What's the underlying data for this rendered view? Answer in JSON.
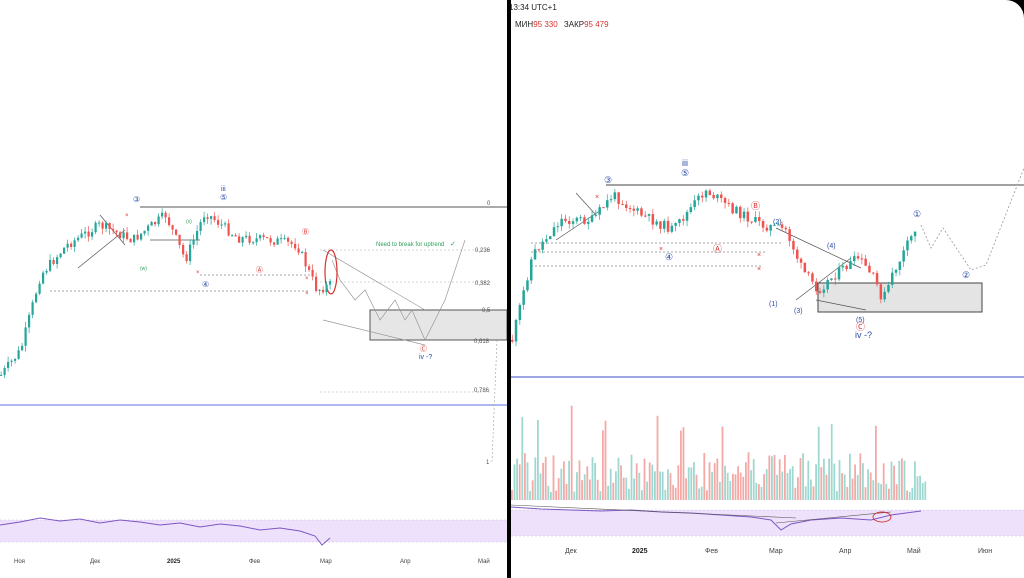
{
  "left": {
    "x_ticks": [
      "Ноя",
      "Дек",
      "2025",
      "Фев",
      "Мар",
      "Апр",
      "Май"
    ],
    "fib_levels": [
      "0",
      "0,236",
      "0,382",
      "0,5",
      "0,618",
      "0,786",
      "1"
    ],
    "note": "Need to break for uptrend",
    "wave_labels": {
      "w3": "③",
      "iii": "iii",
      "w5": "⑤",
      "w4": "④",
      "b": "Ⓑ",
      "a": "Ⓐ",
      "x": "(x)",
      "wm": "(w)",
      "c": "Ⓒ",
      "iv": "iv -?"
    }
  },
  "right": {
    "header_time": "13:34 UTC+1",
    "min_label": "МИН",
    "min_value": "95 330",
    "close_label": "ЗАКР",
    "close_value": "95 479",
    "x_ticks": [
      "Дек",
      "2025",
      "Фев",
      "Мар",
      "Апр",
      "Май",
      "Июн"
    ],
    "wave_labels": {
      "w3": "③",
      "iii": "iii",
      "w5": "⑤",
      "w4": "④",
      "b": "Ⓑ",
      "a": "Ⓐ",
      "p2": "(2)",
      "p1": "(1)",
      "p3": "(3)",
      "p4": "(4)",
      "p5": "(5)",
      "c": "Ⓒ",
      "iv": "iv -?",
      "c1": "①",
      "c2": "②"
    }
  },
  "colors": {
    "up": "#26a69a",
    "down": "#ef5350",
    "wave": "#2b4ca8",
    "rsi": "#7e57c2",
    "rsi_band": "#ede1fb"
  },
  "chart_data": [
    {
      "type": "candlestick",
      "title": "",
      "x_ticks": [
        "Ноя",
        "Дек",
        "2025",
        "Фев",
        "Мар",
        "Апр",
        "Май"
      ],
      "fibonacci": [
        0,
        0.236,
        0.382,
        0.5,
        0.618,
        0.786,
        1
      ],
      "annotations": [
        "Need to break for uptrend",
        "iv -?"
      ]
    },
    {
      "type": "candlestick",
      "title": "",
      "x_ticks": [
        "Дек",
        "2025",
        "Фев",
        "Мар",
        "Апр",
        "Май",
        "Июн"
      ],
      "min": "95 330",
      "close": "95 479",
      "annotations": [
        "iv -?"
      ]
    }
  ]
}
